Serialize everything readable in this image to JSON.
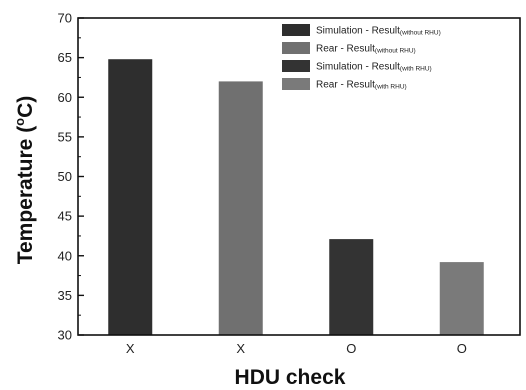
{
  "chart_data": {
    "type": "bar",
    "categories": [
      "X",
      "X",
      "O",
      "O"
    ],
    "values": [
      64.8,
      62.0,
      42.1,
      39.2
    ],
    "bar_series_index": [
      0,
      1,
      2,
      3
    ],
    "series": [
      {
        "name": "Simulation - Result",
        "qualifier": "(without RHU)",
        "color": "#2e2e2e"
      },
      {
        "name": "Rear - Result",
        "qualifier": "(without RHU)",
        "color": "#707070"
      },
      {
        "name": "Simulation - Result",
        "qualifier": "(with RHU)",
        "color": "#333333"
      },
      {
        "name": "Rear - Result",
        "qualifier": "(with RHU)",
        "color": "#7a7a7a"
      }
    ],
    "xlabel": "HDU check",
    "ylabel": "Temperature (",
    "ylabel_unit_sup": "o",
    "ylabel_unit_tail": "C)",
    "ylim": [
      30,
      70
    ],
    "yticks": [
      "30",
      "35",
      "40",
      "45",
      "50",
      "55",
      "60",
      "65",
      "70"
    ],
    "grid": false,
    "legend_position": "top-right"
  }
}
